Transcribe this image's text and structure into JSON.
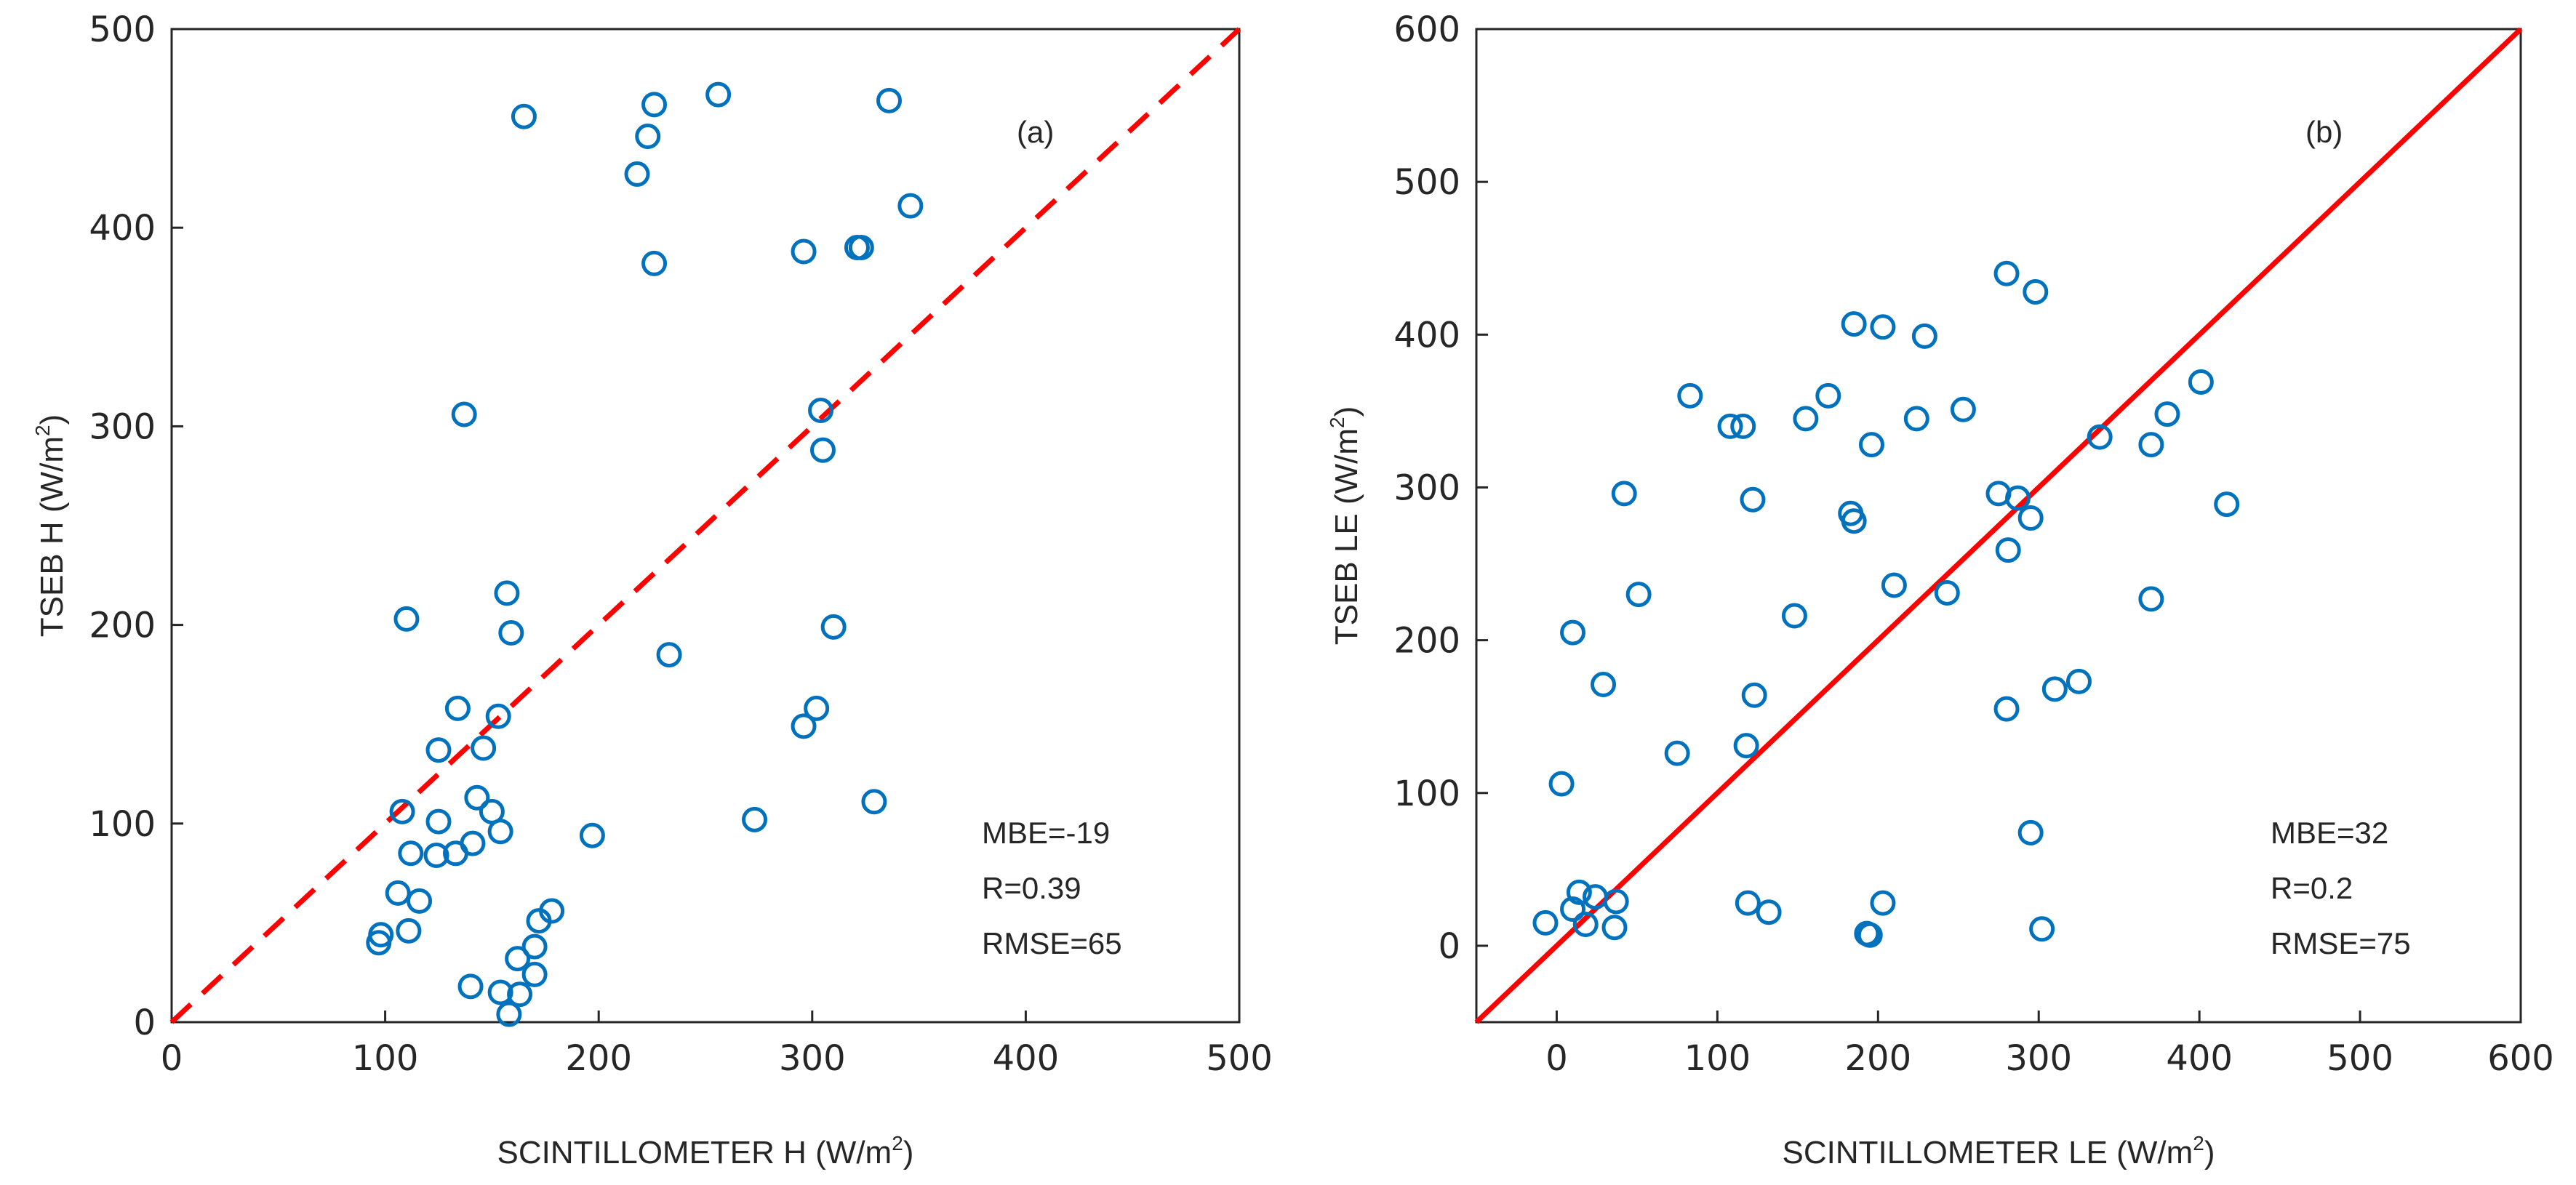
{
  "chart_data": [
    {
      "type": "scatter",
      "panel_label": "(a)",
      "xlabel": "SCINTILLOMETER H (W/m",
      "ylabel": "TSEB H (W/m",
      "unit_exponent": "2",
      "unit_close": ")",
      "xlim": [
        0,
        500
      ],
      "ylim": [
        0,
        500
      ],
      "xticks": [
        "0",
        "100",
        "200",
        "300",
        "400",
        "500"
      ],
      "yticks": [
        "0",
        "100",
        "200",
        "300",
        "400",
        "500"
      ],
      "reference_line": {
        "style": "dashed",
        "color": "#ff0000",
        "from": [
          0,
          0
        ],
        "to": [
          500,
          500
        ]
      },
      "marker_color": "#0072bd",
      "stats": [
        "MBE=-19",
        "R=0.39",
        "RMSE=65"
      ],
      "points": [
        [
          165,
          456
        ],
        [
          226,
          462
        ],
        [
          223,
          446
        ],
        [
          256,
          467
        ],
        [
          336,
          464
        ],
        [
          218,
          427
        ],
        [
          346,
          411
        ],
        [
          226,
          382
        ],
        [
          296,
          388
        ],
        [
          321,
          390
        ],
        [
          323,
          390
        ],
        [
          137,
          306
        ],
        [
          304,
          308
        ],
        [
          305,
          288
        ],
        [
          157,
          216
        ],
        [
          159,
          196
        ],
        [
          110,
          203
        ],
        [
          310,
          199
        ],
        [
          233,
          185
        ],
        [
          134,
          158
        ],
        [
          153,
          154
        ],
        [
          302,
          158
        ],
        [
          296,
          149
        ],
        [
          125,
          137
        ],
        [
          146,
          138
        ],
        [
          143,
          113
        ],
        [
          150,
          106
        ],
        [
          108,
          106
        ],
        [
          125,
          101
        ],
        [
          154,
          96
        ],
        [
          273,
          102
        ],
        [
          329,
          111
        ],
        [
          197,
          94
        ],
        [
          141,
          90
        ],
        [
          112,
          85
        ],
        [
          124,
          84
        ],
        [
          133,
          85
        ],
        [
          106,
          65
        ],
        [
          116,
          61
        ],
        [
          111,
          46
        ],
        [
          172,
          51
        ],
        [
          178,
          56
        ],
        [
          98,
          44
        ],
        [
          97,
          40
        ],
        [
          170,
          38
        ],
        [
          162,
          32
        ],
        [
          170,
          24
        ],
        [
          140,
          18
        ],
        [
          154,
          15
        ],
        [
          163,
          14
        ],
        [
          158,
          4
        ]
      ]
    },
    {
      "type": "scatter",
      "panel_label": "(b)",
      "xlabel": "SCINTILLOMETER LE (W/m",
      "ylabel": "TSEB LE (W/m",
      "unit_exponent": "2",
      "unit_close": ")",
      "xlim": [
        -50,
        600
      ],
      "ylim": [
        -50,
        600
      ],
      "xticks": [
        "0",
        "100",
        "200",
        "300",
        "400",
        "500",
        "600"
      ],
      "yticks": [
        "0",
        "100",
        "200",
        "300",
        "400",
        "500",
        "600"
      ],
      "reference_line": {
        "style": "solid",
        "color": "#ff0000",
        "from": [
          -50,
          -50
        ],
        "to": [
          600,
          600
        ]
      },
      "marker_color": "#0072bd",
      "stats": [
        "MBE=32",
        "R=0.2",
        "RMSE=75"
      ],
      "points": [
        [
          280,
          440
        ],
        [
          298,
          428
        ],
        [
          185,
          407
        ],
        [
          203,
          405
        ],
        [
          229,
          399
        ],
        [
          401,
          369
        ],
        [
          83,
          360
        ],
        [
          169,
          360
        ],
        [
          108,
          340
        ],
        [
          116,
          340
        ],
        [
          155,
          345
        ],
        [
          224,
          345
        ],
        [
          253,
          351
        ],
        [
          380,
          348
        ],
        [
          338,
          333
        ],
        [
          370,
          328
        ],
        [
          196,
          328
        ],
        [
          42,
          296
        ],
        [
          122,
          292
        ],
        [
          275,
          296
        ],
        [
          287,
          293
        ],
        [
          295,
          280
        ],
        [
          183,
          283
        ],
        [
          185,
          278
        ],
        [
          417,
          289
        ],
        [
          281,
          259
        ],
        [
          210,
          236
        ],
        [
          243,
          231
        ],
        [
          51,
          230
        ],
        [
          370,
          227
        ],
        [
          148,
          216
        ],
        [
          10,
          205
        ],
        [
          29,
          171
        ],
        [
          310,
          168
        ],
        [
          325,
          173
        ],
        [
          123,
          164
        ],
        [
          280,
          155
        ],
        [
          118,
          131
        ],
        [
          75,
          126
        ],
        [
          3,
          106
        ],
        [
          295,
          74
        ],
        [
          14,
          35
        ],
        [
          24,
          32
        ],
        [
          37,
          29
        ],
        [
          10,
          24
        ],
        [
          18,
          14
        ],
        [
          -7,
          15
        ],
        [
          36,
          12
        ],
        [
          119,
          28
        ],
        [
          132,
          22
        ],
        [
          203,
          28
        ],
        [
          193,
          8
        ],
        [
          195,
          7
        ],
        [
          302,
          11
        ]
      ]
    }
  ]
}
